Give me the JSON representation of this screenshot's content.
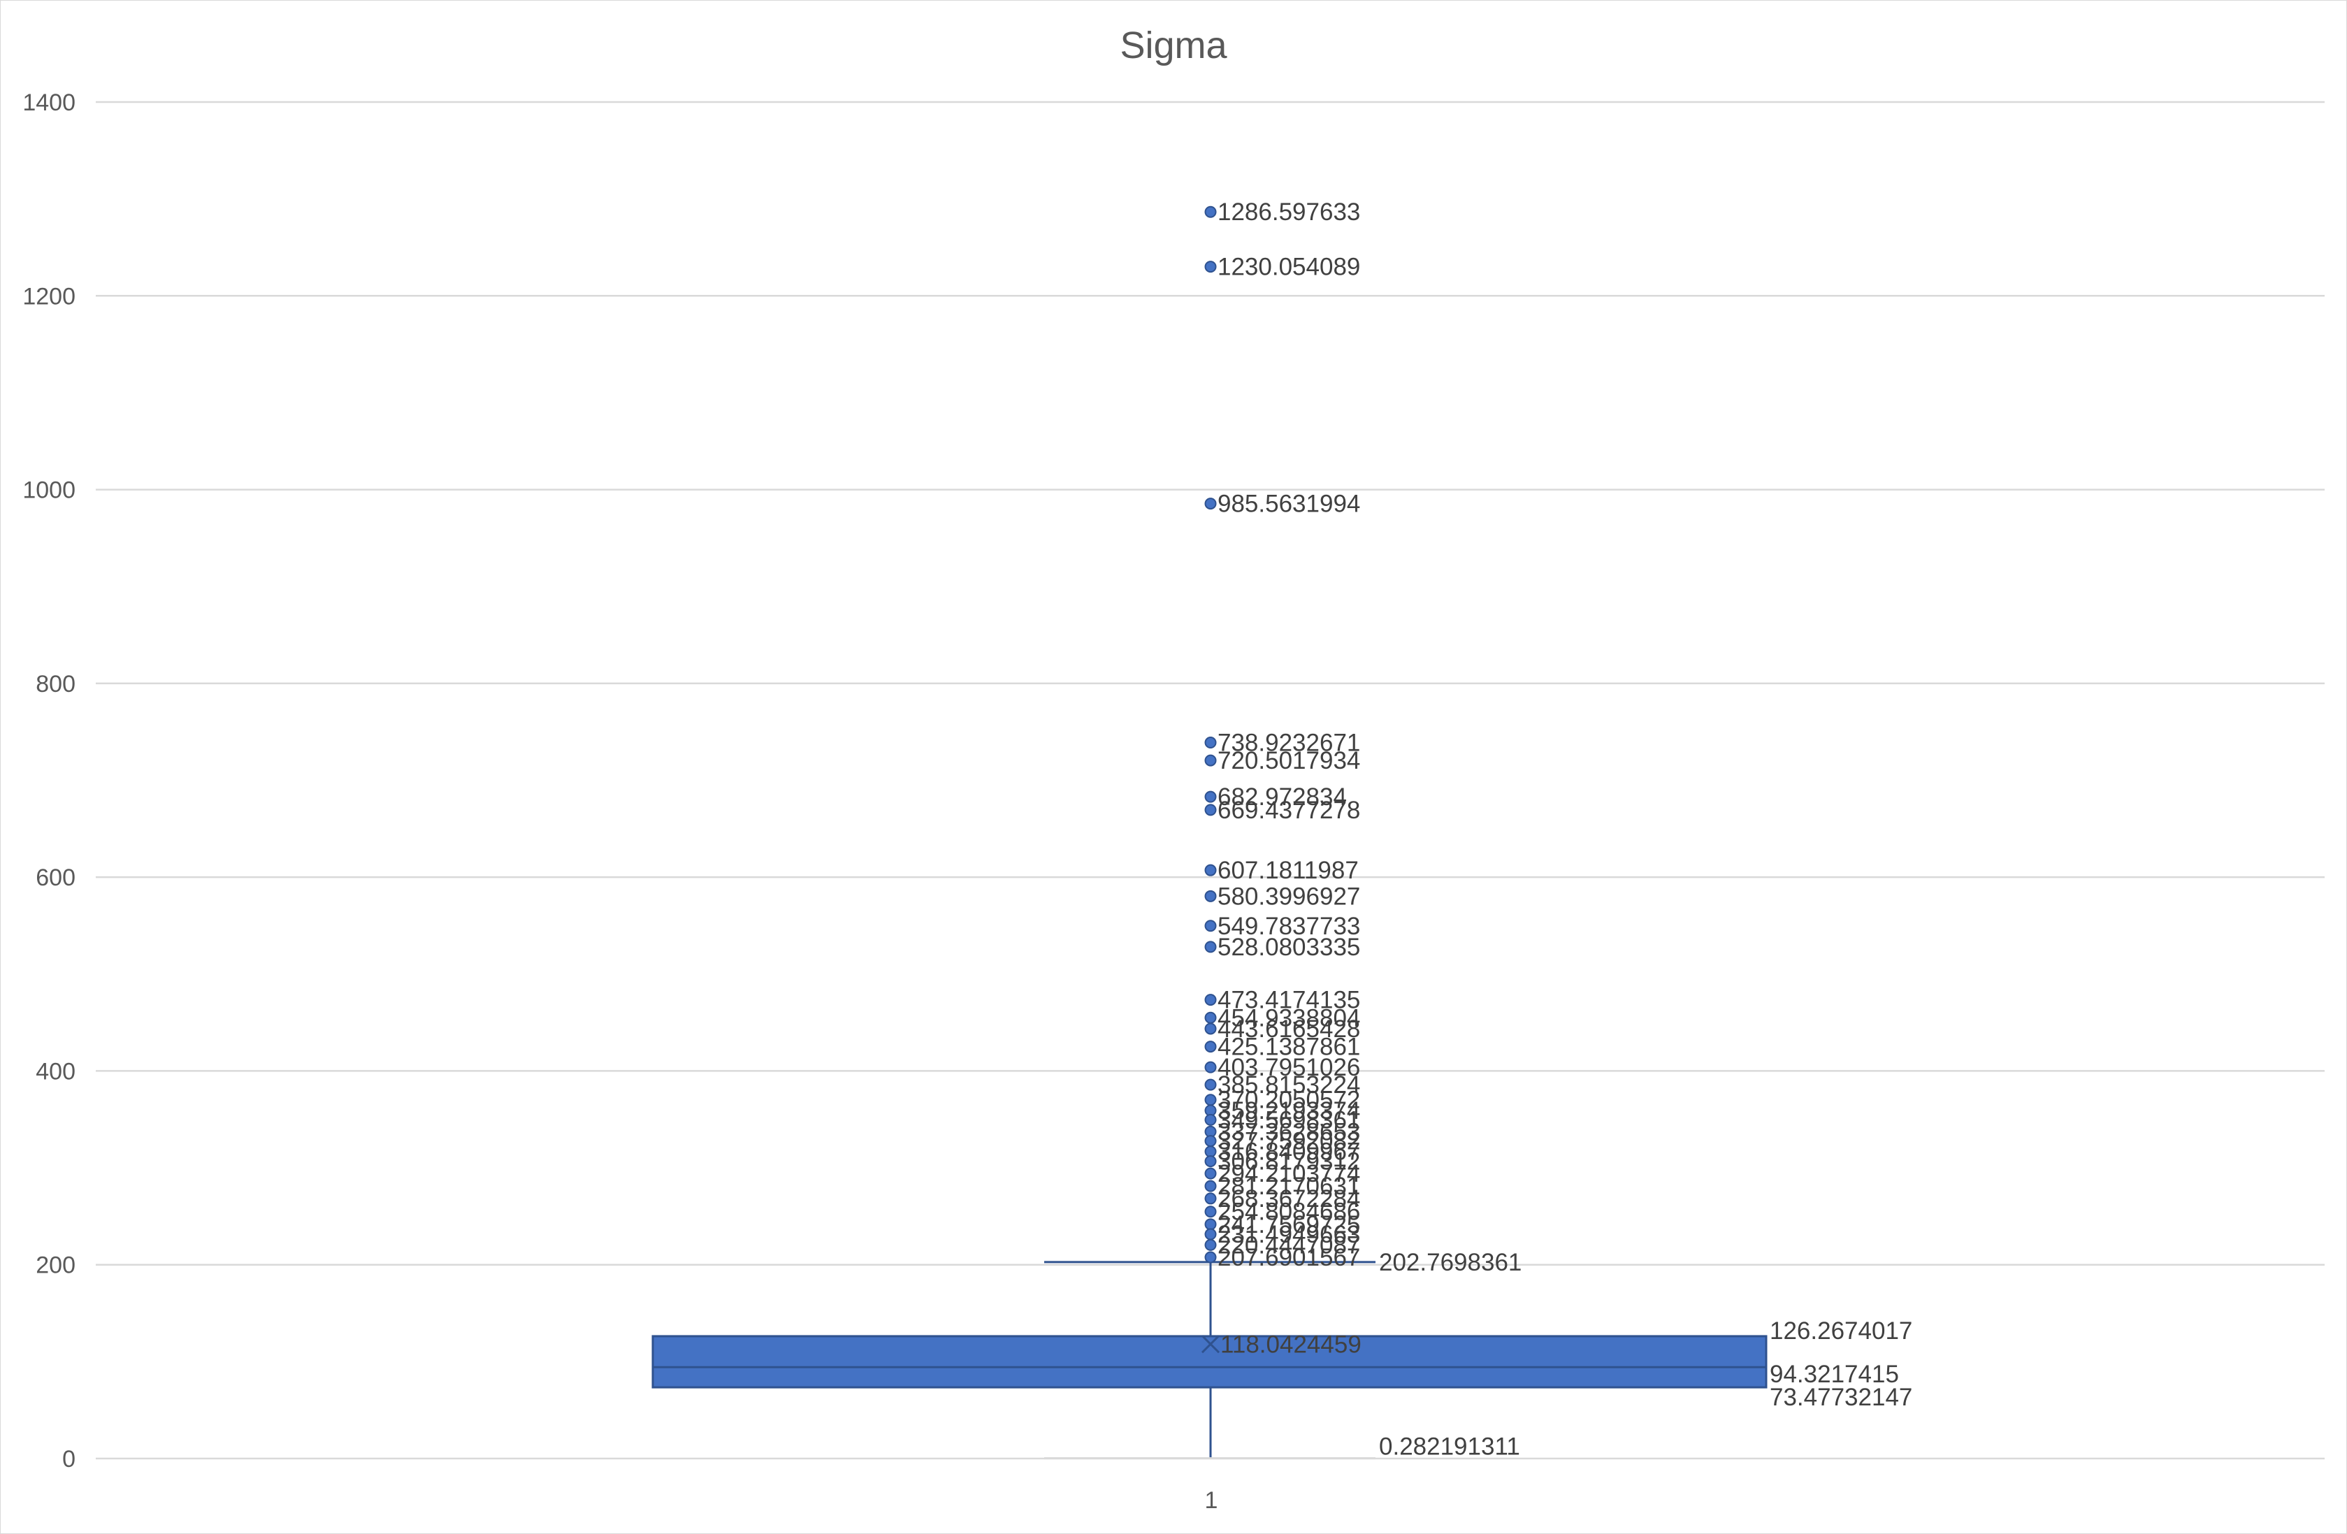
{
  "chart_data": {
    "type": "box",
    "title": "Sigma",
    "categories": [
      "1"
    ],
    "y_ticks": [
      "0",
      "200",
      "400",
      "600",
      "800",
      "1000",
      "1200",
      "1400"
    ],
    "ylim": [
      0,
      1400
    ],
    "grid": true,
    "legend": "none",
    "colors": {
      "box_fill": "#4472c4",
      "box_edge": "#2f528f",
      "grid": "#d9d9d9",
      "text": "#404040"
    },
    "box": {
      "min_whisker": 0.282191311,
      "q1": 73.47732147,
      "median": 94.3217415,
      "mean": 118.0424459,
      "q3": 126.2674017,
      "max_whisker": 202.7698361
    },
    "labels": {
      "min_whisker": "0.282191311",
      "q1": "73.47732147",
      "median": "94.3217415",
      "mean": "118.0424459",
      "q3": "126.2674017",
      "max_whisker": "202.7698361"
    },
    "outliers": [
      {
        "value": 1286.597633,
        "label": "1286.597633"
      },
      {
        "value": 1230.054089,
        "label": "1230.054089"
      },
      {
        "value": 985.5631994,
        "label": "985.5631994"
      },
      {
        "value": 738.9232671,
        "label": "738.9232671"
      },
      {
        "value": 720.5017934,
        "label": "720.5017934"
      },
      {
        "value": 682.972834,
        "label": "682.972834"
      },
      {
        "value": 669.4377278,
        "label": "669.4377278"
      },
      {
        "value": 607.1811987,
        "label": "607.1811987"
      },
      {
        "value": 580.3996927,
        "label": "580.3996927"
      },
      {
        "value": 549.7837733,
        "label": "549.7837733"
      },
      {
        "value": 528.0803335,
        "label": "528.0803335"
      },
      {
        "value": 473.4174135,
        "label": "473.4174135"
      },
      {
        "value": 454.9338804,
        "label": "454.9338804"
      },
      {
        "value": 443.6165428,
        "label": "443.6165428"
      },
      {
        "value": 425.1387861,
        "label": "425.1387861"
      },
      {
        "value": 403.7951026,
        "label": "403.7951026"
      },
      {
        "value": 385.8153224,
        "label": "385.8153224"
      },
      {
        "value": 370.2050572,
        "label": "370.2050572"
      },
      {
        "value": 359.2193374,
        "label": "359.2193374"
      },
      {
        "value": 349.5698361,
        "label": "349.5698361"
      },
      {
        "value": 337.3628653,
        "label": "337.3628653"
      },
      {
        "value": 327.7592082,
        "label": "327.7592082"
      },
      {
        "value": 316.8409967,
        "label": "316.8409967"
      },
      {
        "value": 306.8179312,
        "label": "306.8179312"
      },
      {
        "value": 294.2103774,
        "label": "294.2103774"
      },
      {
        "value": 281.2170631,
        "label": "281.2170631"
      },
      {
        "value": 268.3672284,
        "label": "268.3672284"
      },
      {
        "value": 254.8084686,
        "label": "254.8084686"
      },
      {
        "value": 241.7569725,
        "label": "241.7569725"
      },
      {
        "value": 231.4949663,
        "label": "231.4949663"
      },
      {
        "value": 220.4447087,
        "label": "220.4447087"
      },
      {
        "value": 207.6901567,
        "label": "207.6901567"
      }
    ]
  }
}
